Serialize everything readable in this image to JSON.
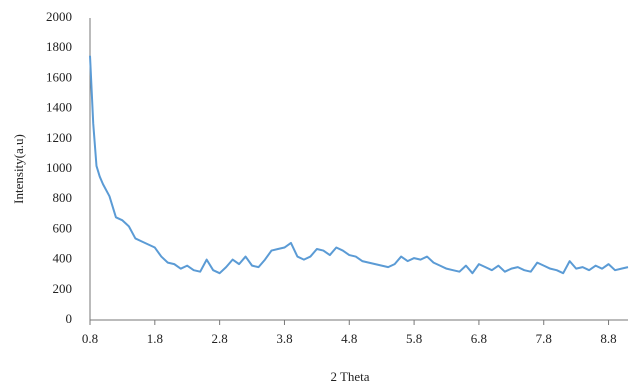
{
  "chart_data": {
    "type": "line",
    "x_label": "2 Theta",
    "y_label": "Intensity(a.u)",
    "x": [
      0.8,
      0.85,
      0.9,
      0.95,
      1.0,
      1.1,
      1.2,
      1.3,
      1.4,
      1.5,
      1.6,
      1.7,
      1.8,
      1.9,
      2.0,
      2.1,
      2.2,
      2.3,
      2.4,
      2.5,
      2.6,
      2.7,
      2.8,
      2.9,
      3.0,
      3.1,
      3.2,
      3.3,
      3.4,
      3.5,
      3.6,
      3.7,
      3.8,
      3.9,
      4.0,
      4.1,
      4.2,
      4.3,
      4.4,
      4.5,
      4.6,
      4.7,
      4.8,
      4.9,
      5.0,
      5.1,
      5.2,
      5.3,
      5.4,
      5.5,
      5.6,
      5.7,
      5.8,
      5.9,
      6.0,
      6.1,
      6.2,
      6.3,
      6.4,
      6.5,
      6.6,
      6.7,
      6.8,
      6.9,
      7.0,
      7.1,
      7.2,
      7.3,
      7.4,
      7.5,
      7.6,
      7.7,
      7.8,
      7.9,
      8.0,
      8.1,
      8.2,
      8.3,
      8.4,
      8.5,
      8.6,
      8.7,
      8.8,
      8.9,
      9.0,
      9.1
    ],
    "series": [
      {
        "color": "#5b9bd5",
        "values": [
          1750,
          1300,
          1020,
          950,
          900,
          820,
          680,
          660,
          620,
          540,
          520,
          500,
          480,
          420,
          380,
          370,
          340,
          360,
          330,
          320,
          400,
          330,
          310,
          350,
          400,
          370,
          420,
          360,
          350,
          400,
          460,
          470,
          480,
          510,
          420,
          400,
          420,
          470,
          460,
          430,
          480,
          460,
          430,
          420,
          390,
          380,
          370,
          360,
          350,
          370,
          420,
          390,
          410,
          400,
          420,
          380,
          360,
          340,
          330,
          320,
          360,
          310,
          370,
          350,
          330,
          360,
          320,
          340,
          350,
          330,
          320,
          380,
          360,
          340,
          330,
          310,
          390,
          340,
          350,
          330,
          360,
          340,
          370,
          330,
          340,
          350
        ]
      }
    ],
    "xlim": [
      0.8,
      9.1
    ],
    "xticks": [
      0.8,
      1.8,
      2.8,
      3.8,
      4.8,
      5.8,
      6.8,
      7.8,
      8.8
    ],
    "ylim": [
      0,
      2000
    ],
    "yticks": [
      0,
      200,
      400,
      600,
      800,
      1000,
      1200,
      1400,
      1600,
      1800,
      2000
    ],
    "grid": false
  }
}
